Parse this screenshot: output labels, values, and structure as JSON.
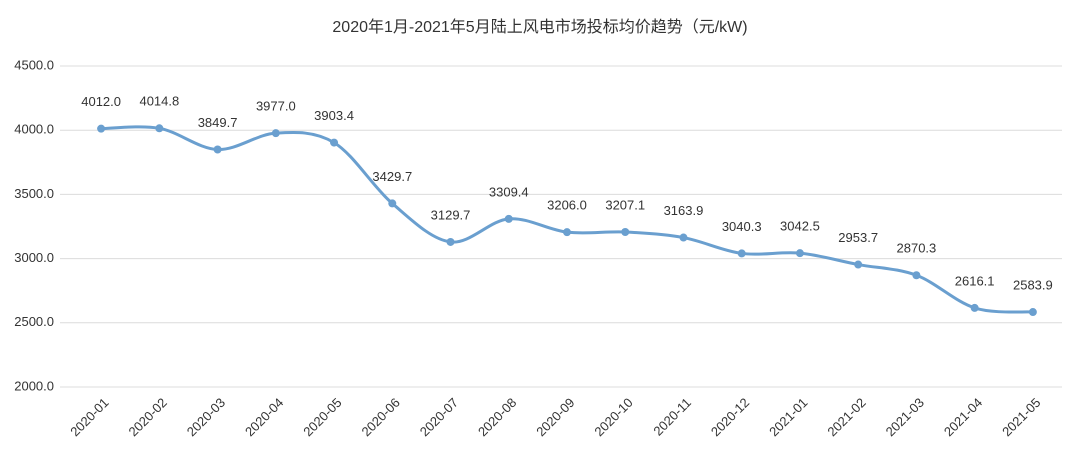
{
  "chart_data": {
    "type": "line",
    "title": "2020年1月-2021年5月陆上风电市场投标均价趋势（元/kW)",
    "categories": [
      "2020-01",
      "2020-02",
      "2020-03",
      "2020-04",
      "2020-05",
      "2020-06",
      "2020-07",
      "2020-08",
      "2020-09",
      "2020-10",
      "2020-11",
      "2020-12",
      "2021-01",
      "2021-02",
      "2021-03",
      "2021-04",
      "2021-05"
    ],
    "values": [
      4012.0,
      4014.8,
      3849.7,
      3977.0,
      3903.4,
      3429.7,
      3129.7,
      3309.4,
      3206.0,
      3207.1,
      3163.9,
      3040.3,
      3042.5,
      2953.7,
      2870.3,
      2616.1,
      2583.9
    ],
    "value_labels": [
      "4012.0",
      "4014.8",
      "3849.7",
      "3977.0",
      "3903.4",
      "3429.7",
      "3129.7",
      "3309.4",
      "3206.0",
      "3207.1",
      "3163.9",
      "3040.3",
      "3042.5",
      "2953.7",
      "2870.3",
      "2616.1",
      "2583.9"
    ],
    "color": "#6a9fcf",
    "ylim": [
      2000,
      4500
    ],
    "yticks": [
      {
        "value": 2000,
        "label": "2000.0"
      },
      {
        "value": 2500,
        "label": "2500.0"
      },
      {
        "value": 3000,
        "label": "3000.0"
      },
      {
        "value": 3500,
        "label": "3500.0"
      },
      {
        "value": 4000,
        "label": "4000.0"
      },
      {
        "value": 4500,
        "label": "4500.0"
      }
    ],
    "grid": true
  }
}
